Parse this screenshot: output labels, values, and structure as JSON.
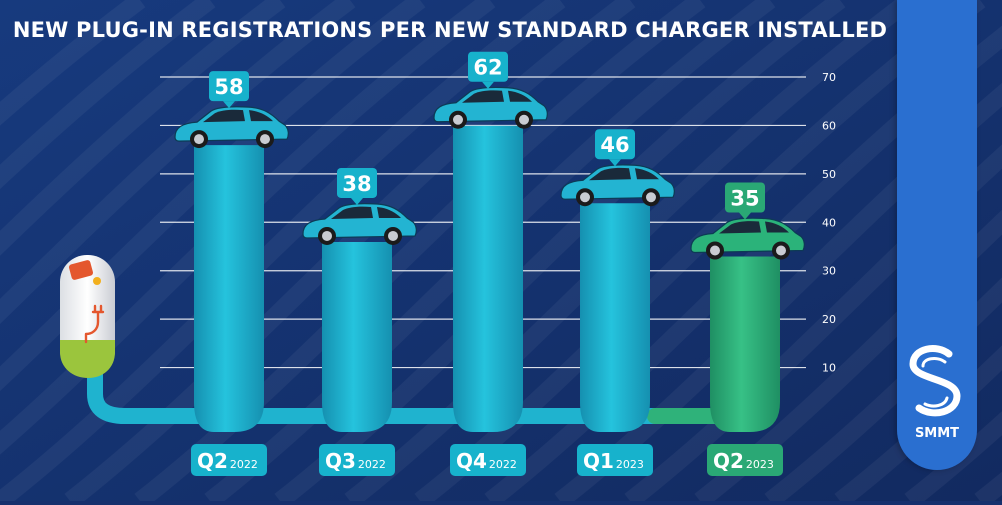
{
  "title": "NEW PLUG-IN REGISTRATIONS PER NEW STANDARD CHARGER INSTALLED",
  "brand": {
    "name": "SMMT",
    "logo": "smmt-s-logo"
  },
  "colors": {
    "background": "#16306d",
    "bar_blue": "#1fb3cf",
    "bar_green": "#2fb27a",
    "label_blue": "#17b2cc",
    "label_green": "#2aa875",
    "grid": "#ffffff",
    "brand_panel": "#2a6fd0"
  },
  "icons": [
    "ev-charger-icon",
    "car-icon",
    "smmt-logo-icon"
  ],
  "chart_data": {
    "type": "bar",
    "title": "NEW PLUG-IN REGISTRATIONS PER NEW STANDARD CHARGER INSTALLED",
    "categories": [
      {
        "quarter": "Q2",
        "year": "2022"
      },
      {
        "quarter": "Q3",
        "year": "2022"
      },
      {
        "quarter": "Q4",
        "year": "2022"
      },
      {
        "quarter": "Q1",
        "year": "2023"
      },
      {
        "quarter": "Q2",
        "year": "2023"
      }
    ],
    "values": [
      58,
      38,
      62,
      46,
      35
    ],
    "highlight_index": 4,
    "yticks": [
      10,
      20,
      30,
      40,
      50,
      60,
      70
    ],
    "ylim": [
      0,
      70
    ],
    "grid": true,
    "xlabel": "",
    "ylabel": ""
  }
}
